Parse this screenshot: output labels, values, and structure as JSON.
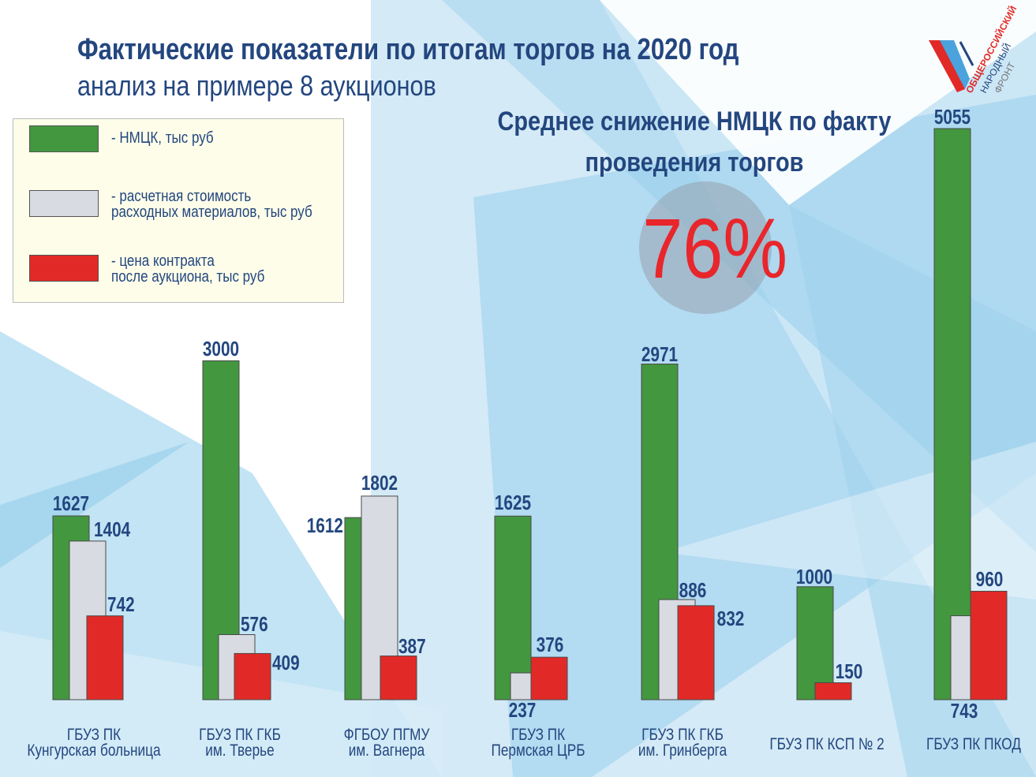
{
  "header": {
    "title": "Фактические показатели по итогам торгов на 2020 год",
    "subtitle": "анализ на примере 8 аукционов"
  },
  "summary": {
    "text": "Среднее снижение НМЦК по факту проведения торгов",
    "value": "76%"
  },
  "logo": {
    "lines": [
      "ОБЩЕРОССИЙСКИЙ",
      "НАРОДНЫЙ",
      "ФРОНТ"
    ]
  },
  "legend": [
    {
      "label": "- НМЦК, тыс руб",
      "color": "#43973f"
    },
    {
      "label": "- расчетная стоимость\nрасходных материалов, тыс руб",
      "color": "#d8dbe2"
    },
    {
      "label": "- цена контракта\nпосле аукциона, тыс руб",
      "color": "#e12a27"
    }
  ],
  "chart_data": {
    "type": "bar",
    "title": "",
    "categories": [
      [
        "ГБУЗ ПК",
        "Кунгурская больница"
      ],
      [
        "ГБУЗ ПК ГКБ",
        "им. Тверье"
      ],
      [
        "ФГБОУ ПГМУ",
        "им. Вагнера"
      ],
      [
        "ГБУЗ ПК",
        "Пермская ЦРБ"
      ],
      [
        "ГБУЗ ПК ГКБ",
        "им. Гринберга"
      ],
      [
        "ГБУЗ ПК КСП № 2"
      ],
      [
        "ГБУЗ ПК ПКОД"
      ]
    ],
    "series": [
      {
        "name": "- НМЦК, тыс руб",
        "color": "#43973f",
        "values": [
          1627,
          3000,
          1612,
          1625,
          2971,
          1000,
          5055
        ]
      },
      {
        "name": "- расчетная стоимость расходных материалов, тыс руб",
        "color": "#d8dbe2",
        "values": [
          1404,
          576,
          1802,
          237,
          886,
          null,
          743
        ]
      },
      {
        "name": "- цена контракта после аукциона, тыс руб",
        "color": "#e12a27",
        "values": [
          742,
          409,
          387,
          376,
          832,
          150,
          960
        ]
      }
    ],
    "ylim": [
      0,
      5055
    ],
    "grid": false,
    "legend_position": "top-left"
  }
}
